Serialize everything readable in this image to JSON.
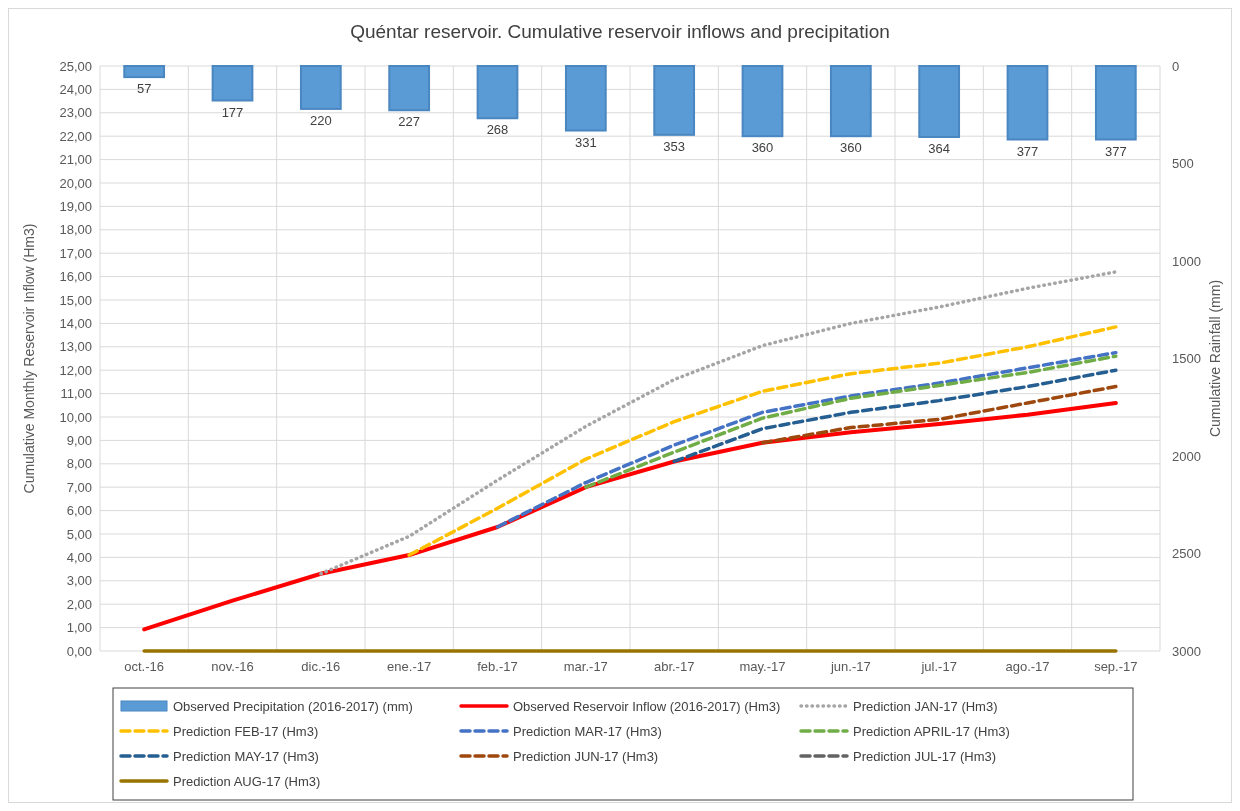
{
  "chart_data": {
    "type": "line",
    "title": "Quéntar reservoir. Cumulative reservoir inflows and precipitation",
    "ylabel": "Cumulative Monthly Reservoir Inflow (Hm3)",
    "y2label": "Cumulative Rainfall (mm)",
    "categories": [
      "oct.-16",
      "nov.-16",
      "dic.-16",
      "ene.-17",
      "feb.-17",
      "mar.-17",
      "abr.-17",
      "may.-17",
      "jun.-17",
      "jul.-17",
      "ago.-17",
      "sep.-17"
    ],
    "ylim": [
      0,
      25
    ],
    "yticks": [
      {
        "value": 0,
        "label": "0,00"
      },
      {
        "value": 1,
        "label": "1,00"
      },
      {
        "value": 2,
        "label": "2,00"
      },
      {
        "value": 3,
        "label": "3,00"
      },
      {
        "value": 4,
        "label": "4,00"
      },
      {
        "value": 5,
        "label": "5,00"
      },
      {
        "value": 6,
        "label": "6,00"
      },
      {
        "value": 7,
        "label": "7,00"
      },
      {
        "value": 8,
        "label": "8,00"
      },
      {
        "value": 9,
        "label": "9,00"
      },
      {
        "value": 10,
        "label": "10,00"
      },
      {
        "value": 11,
        "label": "11,00"
      },
      {
        "value": 12,
        "label": "12,00"
      },
      {
        "value": 13,
        "label": "13,00"
      },
      {
        "value": 14,
        "label": "14,00"
      },
      {
        "value": 15,
        "label": "15,00"
      },
      {
        "value": 16,
        "label": "16,00"
      },
      {
        "value": 17,
        "label": "17,00"
      },
      {
        "value": 18,
        "label": "18,00"
      },
      {
        "value": 19,
        "label": "19,00"
      },
      {
        "value": 20,
        "label": "20,00"
      },
      {
        "value": 21,
        "label": "21,00"
      },
      {
        "value": 22,
        "label": "22,00"
      },
      {
        "value": 23,
        "label": "23,00"
      },
      {
        "value": 24,
        "label": "24,00"
      },
      {
        "value": 25,
        "label": "25,00"
      }
    ],
    "y2lim": [
      3000,
      0
    ],
    "y2ticks": [
      0,
      500,
      1000,
      1500,
      2000,
      2500,
      3000
    ],
    "grid": true,
    "legend": "bottom",
    "series": [
      {
        "name": "Observed Precipitation (2016-2017) (mm)",
        "type": "bar",
        "axis": "y2",
        "color": "#5b9bd5",
        "values": [
          57,
          177,
          220,
          227,
          268,
          331,
          353,
          360,
          360,
          364,
          377,
          377
        ],
        "value_labels": [
          "57",
          "177",
          "220",
          "227",
          "268",
          "331",
          "353",
          "360",
          "360",
          "364",
          "377",
          "377"
        ]
      },
      {
        "name": "Observed Reservoir Inflow (2016-2017) (Hm3)",
        "color": "#ff0000",
        "line_style": "solid",
        "values": [
          0.92,
          2.15,
          3.3,
          4.1,
          5.3,
          7.0,
          8.1,
          8.9,
          9.35,
          9.7,
          10.1,
          10.6
        ]
      },
      {
        "name": "Prediction JAN-17 (Hm3)",
        "color": "#a5a5a5",
        "line_style": "dotted",
        "values": [
          null,
          null,
          3.3,
          4.9,
          7.3,
          9.6,
          11.6,
          13.05,
          14.0,
          14.7,
          15.5,
          16.2
        ]
      },
      {
        "name": "Prediction FEB-17 (Hm3)",
        "color": "#ffc000",
        "line_style": "dashed",
        "values": [
          null,
          null,
          null,
          4.1,
          6.1,
          8.2,
          9.8,
          11.1,
          11.85,
          12.3,
          13.0,
          13.85
        ]
      },
      {
        "name": "Prediction MAR-17 (Hm3)",
        "color": "#4472c4",
        "line_style": "dashed",
        "values": [
          null,
          null,
          null,
          null,
          5.3,
          7.2,
          8.8,
          10.2,
          10.9,
          11.45,
          12.1,
          12.75
        ]
      },
      {
        "name": "Prediction APRIL-17 (Hm3)",
        "color": "#70ad47",
        "line_style": "dashed",
        "values": [
          null,
          null,
          null,
          null,
          null,
          7.0,
          8.5,
          9.95,
          10.8,
          11.35,
          11.9,
          12.6
        ]
      },
      {
        "name": "Prediction MAY-17 (Hm3)",
        "color": "#255e91",
        "line_style": "dashed",
        "values": [
          null,
          null,
          null,
          null,
          null,
          null,
          8.1,
          9.5,
          10.2,
          10.7,
          11.3,
          12.0
        ]
      },
      {
        "name": "Prediction JUN-17 (Hm3)",
        "color": "#9e480e",
        "line_style": "dashed",
        "values": [
          null,
          null,
          null,
          null,
          null,
          null,
          null,
          8.9,
          9.55,
          9.9,
          10.6,
          11.3
        ]
      },
      {
        "name": "Prediction JUL-17 (Hm3)",
        "color": "#636363",
        "line_style": "dashed",
        "values": [
          null,
          null,
          null,
          null,
          null,
          null,
          null,
          null,
          null,
          null,
          null,
          null
        ]
      },
      {
        "name": "Prediction AUG-17 (Hm3)",
        "color": "#997300",
        "line_style": "solid",
        "values": [
          0,
          0,
          0,
          0,
          0,
          0,
          0,
          0,
          0,
          0,
          0,
          0
        ]
      }
    ]
  }
}
